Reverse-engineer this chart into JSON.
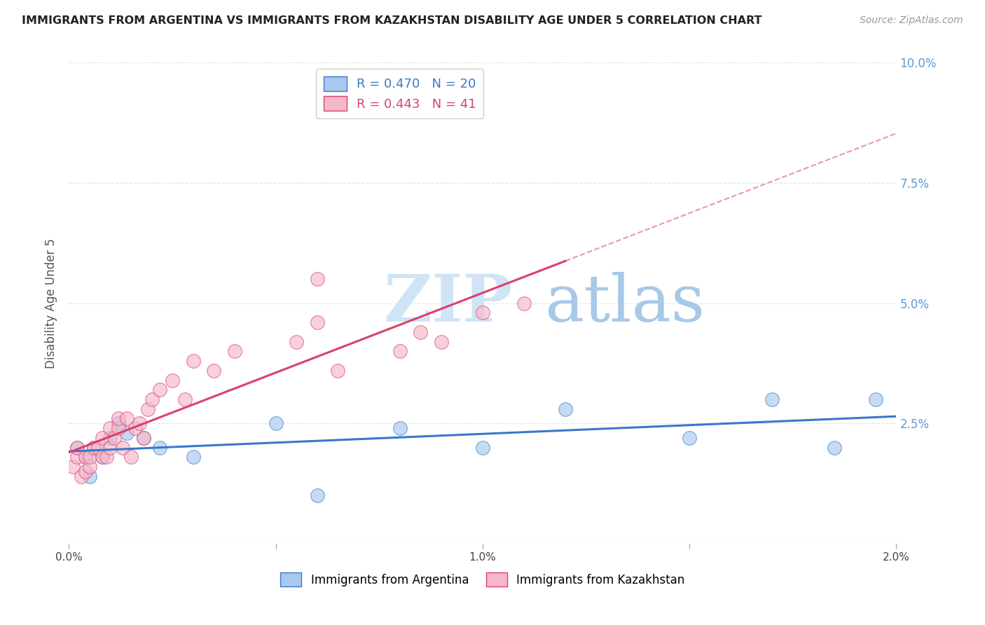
{
  "title": "IMMIGRANTS FROM ARGENTINA VS IMMIGRANTS FROM KAZAKHSTAN DISABILITY AGE UNDER 5 CORRELATION CHART",
  "source": "Source: ZipAtlas.com",
  "ylabel": "Disability Age Under 5",
  "legend_argentina": "Immigrants from Argentina",
  "legend_kazakhstan": "Immigrants from Kazakhstan",
  "R_argentina": 0.47,
  "N_argentina": 20,
  "R_kazakhstan": 0.443,
  "N_kazakhstan": 41,
  "color_argentina": "#A8C8EE",
  "color_kazakhstan": "#F5B8C8",
  "trendline_argentina": "#3A78C9",
  "trendline_kazakhstan": "#D94070",
  "xlim": [
    0.0,
    0.02
  ],
  "ylim": [
    0.0,
    0.1
  ],
  "yticks": [
    0.0,
    0.025,
    0.05,
    0.075,
    0.1
  ],
  "ytick_labels": [
    "",
    "2.5%",
    "5.0%",
    "7.5%",
    "10.0%"
  ],
  "xticks": [
    0.0,
    0.005,
    0.01,
    0.015,
    0.02
  ],
  "xtick_labels": [
    "0.0%",
    "",
    "1.0%",
    "",
    "2.0%"
  ],
  "argentina_x": [
    0.0002,
    0.0004,
    0.0005,
    0.0006,
    0.0008,
    0.001,
    0.0012,
    0.0014,
    0.0018,
    0.0022,
    0.003,
    0.005,
    0.006,
    0.008,
    0.01,
    0.012,
    0.015,
    0.017,
    0.0185,
    0.0195
  ],
  "argentina_y": [
    0.02,
    0.018,
    0.014,
    0.02,
    0.018,
    0.022,
    0.025,
    0.023,
    0.022,
    0.02,
    0.018,
    0.025,
    0.01,
    0.024,
    0.02,
    0.028,
    0.022,
    0.03,
    0.02,
    0.03
  ],
  "kazakhstan_x": [
    0.0001,
    0.0002,
    0.0002,
    0.0003,
    0.0004,
    0.0004,
    0.0005,
    0.0005,
    0.0006,
    0.0007,
    0.0008,
    0.0008,
    0.0009,
    0.001,
    0.001,
    0.0011,
    0.0012,
    0.0012,
    0.0013,
    0.0014,
    0.0015,
    0.0016,
    0.0017,
    0.0018,
    0.0019,
    0.002,
    0.0022,
    0.0025,
    0.0028,
    0.003,
    0.0035,
    0.004,
    0.0055,
    0.006,
    0.0065,
    0.008,
    0.0085,
    0.009,
    0.01,
    0.011,
    0.006
  ],
  "kazakhstan_y": [
    0.016,
    0.018,
    0.02,
    0.014,
    0.018,
    0.015,
    0.016,
    0.018,
    0.02,
    0.02,
    0.018,
    0.022,
    0.018,
    0.024,
    0.02,
    0.022,
    0.024,
    0.026,
    0.02,
    0.026,
    0.018,
    0.024,
    0.025,
    0.022,
    0.028,
    0.03,
    0.032,
    0.034,
    0.03,
    0.038,
    0.036,
    0.04,
    0.042,
    0.046,
    0.036,
    0.04,
    0.044,
    0.042,
    0.048,
    0.05,
    0.055
  ],
  "watermark_zip": "ZIP",
  "watermark_atlas": "atlas",
  "watermark_color_zip": "#D0E4F5",
  "watermark_color_atlas": "#A8C8E8",
  "background_color": "#FFFFFF",
  "grid_color": "#D8E8F0",
  "right_axis_color": "#5B9BD5"
}
